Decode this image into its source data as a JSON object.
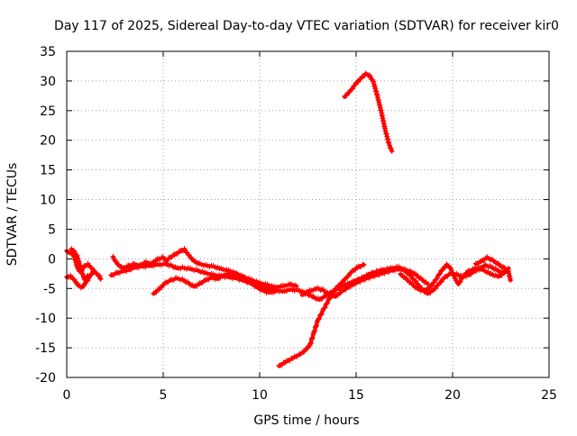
{
  "chart_data": {
    "type": "line",
    "title": "Day 117 of 2025, Sidereal Day-to-day VTEC variation (SDTVAR) for receiver kir0",
    "xlabel": "GPS time / hours",
    "ylabel": "SDTVAR / TECUs",
    "xlim": [
      0,
      25
    ],
    "ylim": [
      -20,
      35
    ],
    "x_ticks": [
      0,
      5,
      10,
      15,
      20,
      25
    ],
    "y_ticks": [
      -20,
      -15,
      -10,
      -5,
      0,
      5,
      10,
      15,
      20,
      25,
      30,
      35
    ],
    "grid": true,
    "legend": "none",
    "marker": "plus",
    "colors": {
      "series": "#ff0000",
      "grid": "#a0a0a0",
      "axes": "#000000"
    },
    "series": [
      {
        "name": "track-1",
        "points": [
          [
            0.0,
            1.3
          ],
          [
            0.2,
            1.0
          ],
          [
            0.35,
            0.6
          ],
          [
            0.45,
            -0.3
          ],
          [
            0.55,
            -1.5
          ],
          [
            0.7,
            -2.2
          ],
          [
            0.9,
            -1.3
          ],
          [
            1.1,
            -0.9
          ],
          [
            1.3,
            -1.6
          ],
          [
            1.5,
            -2.4
          ],
          [
            1.7,
            -2.9
          ],
          [
            1.75,
            -3.4
          ]
        ]
      },
      {
        "name": "track-2",
        "points": [
          [
            0.0,
            -3.1
          ],
          [
            0.2,
            -2.9
          ],
          [
            0.4,
            -3.6
          ],
          [
            0.6,
            -4.5
          ],
          [
            0.8,
            -4.8
          ],
          [
            1.0,
            -4.0
          ],
          [
            1.2,
            -3.0
          ],
          [
            1.35,
            -2.2
          ]
        ]
      },
      {
        "name": "track-3",
        "points": [
          [
            0.25,
            1.6
          ],
          [
            0.4,
            1.2
          ],
          [
            0.55,
            0.4
          ],
          [
            0.65,
            -0.8
          ],
          [
            0.75,
            -1.8
          ],
          [
            0.85,
            -2.9
          ],
          [
            0.95,
            -3.6
          ],
          [
            1.1,
            -2.8
          ]
        ]
      },
      {
        "name": "track-4",
        "points": [
          [
            2.4,
            0.3
          ],
          [
            2.6,
            -0.8
          ],
          [
            2.9,
            -1.6
          ],
          [
            3.2,
            -1.2
          ],
          [
            3.5,
            -0.9
          ],
          [
            3.8,
            -1.1
          ],
          [
            4.1,
            -0.6
          ],
          [
            4.4,
            -0.8
          ],
          [
            4.7,
            -0.1
          ],
          [
            5.0,
            0.2
          ],
          [
            5.2,
            -0.4
          ]
        ]
      },
      {
        "name": "track-5",
        "points": [
          [
            2.3,
            -2.8
          ],
          [
            2.6,
            -2.4
          ],
          [
            2.9,
            -2.1
          ],
          [
            3.2,
            -1.9
          ],
          [
            3.5,
            -1.5
          ],
          [
            3.9,
            -1.3
          ],
          [
            4.3,
            -1.2
          ],
          [
            4.7,
            -1.0
          ],
          [
            5.1,
            -0.9
          ],
          [
            5.4,
            -1.1
          ],
          [
            5.7,
            -1.6
          ],
          [
            6.0,
            -1.5
          ],
          [
            6.4,
            -1.7
          ],
          [
            6.8,
            -2.0
          ],
          [
            7.2,
            -2.4
          ],
          [
            7.6,
            -2.7
          ],
          [
            8.0,
            -2.9
          ],
          [
            8.4,
            -3.1
          ],
          [
            8.8,
            -3.3
          ],
          [
            9.2,
            -3.7
          ],
          [
            9.6,
            -4.2
          ],
          [
            10.0,
            -4.6
          ],
          [
            10.4,
            -5.0
          ],
          [
            10.8,
            -5.3
          ],
          [
            11.2,
            -5.5
          ],
          [
            11.6,
            -5.2
          ],
          [
            12.0,
            -5.3
          ],
          [
            12.4,
            -5.8
          ],
          [
            12.8,
            -6.5
          ],
          [
            13.1,
            -6.9
          ],
          [
            13.4,
            -6.3
          ],
          [
            13.8,
            -5.5
          ],
          [
            14.3,
            -4.6
          ],
          [
            14.8,
            -3.9
          ],
          [
            15.3,
            -3.2
          ],
          [
            15.8,
            -2.4
          ],
          [
            16.3,
            -1.9
          ],
          [
            16.8,
            -1.6
          ],
          [
            17.2,
            -1.4
          ],
          [
            17.5,
            -1.9
          ],
          [
            17.8,
            -2.8
          ],
          [
            18.1,
            -3.9
          ],
          [
            18.4,
            -5.1
          ],
          [
            18.7,
            -5.9
          ],
          [
            19.0,
            -5.3
          ],
          [
            19.3,
            -4.2
          ],
          [
            19.6,
            -3.1
          ],
          [
            19.9,
            -2.5
          ],
          [
            20.2,
            -2.6
          ],
          [
            20.5,
            -3.0
          ],
          [
            20.8,
            -2.8
          ],
          [
            21.1,
            -2.2
          ],
          [
            21.4,
            -1.6
          ],
          [
            21.7,
            -1.1
          ],
          [
            22.0,
            -1.4
          ],
          [
            22.3,
            -1.9
          ],
          [
            22.6,
            -2.4
          ],
          [
            22.8,
            -1.9
          ]
        ]
      },
      {
        "name": "track-6",
        "points": [
          [
            5.3,
            0.1
          ],
          [
            5.6,
            0.7
          ],
          [
            5.9,
            1.3
          ],
          [
            6.1,
            1.6
          ],
          [
            6.35,
            0.5
          ],
          [
            6.6,
            -0.4
          ],
          [
            6.9,
            -0.9
          ],
          [
            7.2,
            -1.1
          ],
          [
            7.6,
            -1.3
          ],
          [
            8.0,
            -1.7
          ],
          [
            8.4,
            -2.0
          ],
          [
            8.8,
            -2.5
          ],
          [
            9.2,
            -3.1
          ],
          [
            9.6,
            -3.6
          ],
          [
            10.0,
            -4.1
          ],
          [
            10.4,
            -4.4
          ],
          [
            10.8,
            -4.8
          ],
          [
            11.2,
            -4.6
          ],
          [
            11.6,
            -4.3
          ],
          [
            11.9,
            -4.6
          ]
        ]
      },
      {
        "name": "track-7",
        "points": [
          [
            4.5,
            -5.9
          ],
          [
            4.8,
            -5.1
          ],
          [
            5.1,
            -4.1
          ],
          [
            5.4,
            -3.6
          ],
          [
            5.7,
            -3.3
          ],
          [
            6.0,
            -3.5
          ],
          [
            6.3,
            -4.1
          ],
          [
            6.6,
            -4.7
          ],
          [
            6.9,
            -4.2
          ],
          [
            7.2,
            -3.6
          ],
          [
            7.5,
            -3.2
          ],
          [
            7.8,
            -3.4
          ],
          [
            8.1,
            -2.9
          ],
          [
            8.4,
            -2.5
          ],
          [
            8.7,
            -2.7
          ],
          [
            9.0,
            -3.1
          ],
          [
            9.3,
            -3.5
          ],
          [
            9.6,
            -4.2
          ],
          [
            9.9,
            -4.9
          ],
          [
            10.2,
            -5.4
          ],
          [
            10.5,
            -5.7
          ],
          [
            10.8,
            -5.5
          ]
        ]
      },
      {
        "name": "track-8",
        "points": [
          [
            11.0,
            -18.1
          ],
          [
            11.4,
            -17.3
          ],
          [
            11.8,
            -16.6
          ],
          [
            12.2,
            -15.9
          ],
          [
            12.6,
            -14.6
          ],
          [
            12.8,
            -12.6
          ],
          [
            13.0,
            -10.5
          ],
          [
            13.3,
            -8.6
          ],
          [
            13.6,
            -6.8
          ],
          [
            13.9,
            -5.2
          ],
          [
            14.2,
            -4.2
          ],
          [
            14.5,
            -3.2
          ],
          [
            14.8,
            -2.1
          ],
          [
            15.1,
            -1.4
          ],
          [
            15.4,
            -1.0
          ]
        ]
      },
      {
        "name": "track-9",
        "points": [
          [
            12.2,
            -6.1
          ],
          [
            12.6,
            -5.4
          ],
          [
            13.0,
            -5.0
          ],
          [
            13.3,
            -5.3
          ],
          [
            13.6,
            -6.0
          ],
          [
            13.9,
            -6.4
          ],
          [
            14.3,
            -5.4
          ],
          [
            14.8,
            -4.4
          ],
          [
            15.3,
            -3.6
          ],
          [
            15.8,
            -3.0
          ],
          [
            16.3,
            -2.5
          ],
          [
            16.8,
            -2.0
          ],
          [
            17.3,
            -1.7
          ],
          [
            17.8,
            -2.1
          ],
          [
            18.1,
            -2.7
          ],
          [
            18.4,
            -3.5
          ],
          [
            18.7,
            -4.2
          ]
        ]
      },
      {
        "name": "track-10",
        "points": [
          [
            17.3,
            -2.6
          ],
          [
            17.6,
            -3.4
          ],
          [
            17.9,
            -4.3
          ],
          [
            18.2,
            -5.1
          ],
          [
            18.5,
            -5.4
          ],
          [
            18.8,
            -4.9
          ],
          [
            19.1,
            -3.7
          ],
          [
            19.4,
            -2.1
          ],
          [
            19.7,
            -1.0
          ],
          [
            19.9,
            -1.6
          ],
          [
            20.1,
            -3.1
          ],
          [
            20.3,
            -4.3
          ],
          [
            20.5,
            -3.2
          ],
          [
            20.8,
            -2.1
          ],
          [
            21.2,
            -1.6
          ],
          [
            21.6,
            -1.9
          ],
          [
            22.0,
            -2.6
          ],
          [
            22.4,
            -3.0
          ],
          [
            22.7,
            -2.3
          ],
          [
            22.9,
            -1.6
          ]
        ]
      },
      {
        "name": "track-11",
        "points": [
          [
            21.2,
            -0.9
          ],
          [
            21.5,
            -0.4
          ],
          [
            21.8,
            0.2
          ],
          [
            22.1,
            -0.3
          ],
          [
            22.4,
            -1.0
          ],
          [
            22.7,
            -1.6
          ],
          [
            22.9,
            -2.2
          ],
          [
            23.0,
            -3.6
          ]
        ]
      },
      {
        "name": "track-12",
        "points": [
          [
            14.4,
            27.3
          ],
          [
            14.7,
            28.3
          ],
          [
            15.0,
            29.6
          ],
          [
            15.3,
            30.6
          ],
          [
            15.5,
            31.2
          ],
          [
            15.7,
            30.9
          ],
          [
            15.9,
            29.8
          ],
          [
            16.1,
            27.5
          ],
          [
            16.3,
            24.9
          ],
          [
            16.5,
            21.9
          ],
          [
            16.7,
            19.4
          ],
          [
            16.85,
            18.2
          ]
        ]
      }
    ]
  }
}
